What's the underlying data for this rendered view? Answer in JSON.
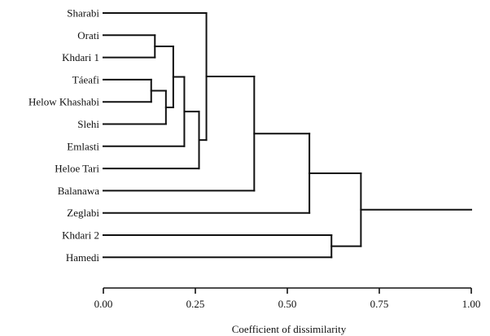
{
  "axis": {
    "title": "Coefficient of dissimilarity",
    "ticks": [
      "0.00",
      "0.25",
      "0.50",
      "0.75",
      "1.00"
    ]
  },
  "colors": {
    "ink": "#111111",
    "background": "#ffffff"
  },
  "chart_data": {
    "type": "dendrogram",
    "xlabel": "Coefficient of dissimilarity",
    "xlim": [
      0,
      1
    ],
    "tick_values": [
      0,
      0.25,
      0.5,
      0.75,
      1.0
    ],
    "leaves": [
      "Sharabi",
      "Orati",
      "Khdari 1",
      "Táeafi",
      "Helow Khashabi",
      "Slehi",
      "Emlasti",
      "Heloe Tari",
      "Balanawa",
      "Zeglabi",
      "Khdari 2",
      "Hamedi"
    ],
    "merges": [
      {
        "id": "m1",
        "members": [
          "Táeafi",
          "Helow Khashabi"
        ],
        "height": 0.13
      },
      {
        "id": "m2",
        "members": [
          "Orati",
          "Khdari 1"
        ],
        "height": 0.14
      },
      {
        "id": "m3",
        "members": [
          "m1",
          "Slehi"
        ],
        "height": 0.17
      },
      {
        "id": "m4",
        "members": [
          "m2",
          "m3"
        ],
        "height": 0.19
      },
      {
        "id": "m5",
        "members": [
          "m4",
          "Emlasti"
        ],
        "height": 0.22
      },
      {
        "id": "m6",
        "members": [
          "m5",
          "Heloe Tari"
        ],
        "height": 0.26
      },
      {
        "id": "m7",
        "members": [
          "Sharabi",
          "m6"
        ],
        "height": 0.28
      },
      {
        "id": "m8",
        "members": [
          "m7",
          "Balanawa"
        ],
        "height": 0.41
      },
      {
        "id": "m9",
        "members": [
          "m8",
          "Zeglabi"
        ],
        "height": 0.56
      },
      {
        "id": "m10",
        "members": [
          "Khdari 2",
          "Hamedi"
        ],
        "height": 0.62
      },
      {
        "id": "m11",
        "members": [
          "m9",
          "m10"
        ],
        "height": 0.7
      }
    ],
    "root_height": 1.0
  }
}
